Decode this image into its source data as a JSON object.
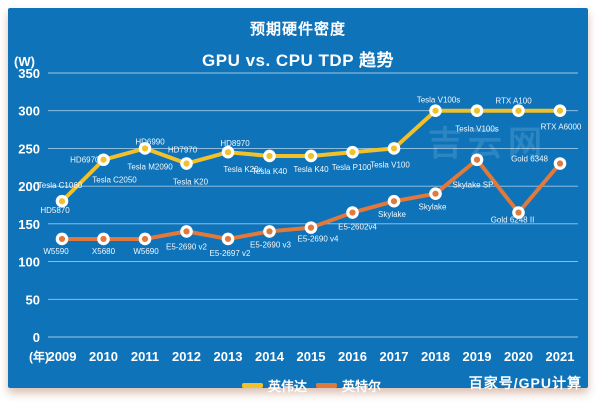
{
  "title": {
    "line1": "预期硬件密度",
    "line2": "GPU vs. CPU TDP 趋势"
  },
  "watermark": "吉云网",
  "credit": "百家号/GPU计算",
  "y_axis": {
    "unit": "(W)",
    "ticks": [
      350,
      300,
      250,
      200,
      150,
      100,
      50,
      0
    ]
  },
  "x_axis": {
    "prefix": "(年)",
    "years": [
      "2009",
      "2010",
      "2011",
      "2012",
      "2013",
      "2014",
      "2015",
      "2016",
      "2017",
      "2018",
      "2019",
      "2020",
      "2021"
    ]
  },
  "legend": [
    {
      "label": "英伟达",
      "color": "#f2c028"
    },
    {
      "label": "英特尔",
      "color": "#e0793c"
    }
  ],
  "colors": {
    "background": "#0e73b9",
    "gridline": "rgba(255,255,255,0.6)",
    "text": "#ffffff",
    "nvidia": "#f2c028",
    "intel": "#e0793c"
  },
  "chart_data": {
    "type": "line",
    "title": "预期硬件密度 — GPU vs. CPU TDP 趋势",
    "xlabel": "(年)",
    "ylabel": "(W)",
    "ylim": [
      0,
      350
    ],
    "grid": true,
    "legend_position": "bottom",
    "categories": [
      2009,
      2010,
      2011,
      2012,
      2013,
      2014,
      2015,
      2016,
      2017,
      2018,
      2019,
      2020,
      2021
    ],
    "series": [
      {
        "name": "英伟达",
        "color": "#f2c028",
        "values": [
          180,
          235,
          250,
          230,
          245,
          240,
          240,
          245,
          250,
          300,
          300,
          300,
          300
        ],
        "point_labels": [
          [
            {
              "text": "Tesla C1060",
              "dx": -2,
              "dy": -13
            },
            {
              "text": "HD5870",
              "dx": -7,
              "dy": 12
            }
          ],
          [
            {
              "text": "HD6970",
              "dx": -4,
              "dy": 3,
              "anchor": "end"
            },
            {
              "text": "Tesla C2050",
              "dx": 11,
              "dy": 23
            }
          ],
          [
            {
              "text": "HD6990",
              "dx": 5,
              "dy": -4
            },
            {
              "text": "Tesla M2090",
              "dx": 5,
              "dy": 21
            }
          ],
          [
            {
              "text": "HD7970",
              "dx": -4,
              "dy": -11
            },
            {
              "text": "Tesla K20",
              "dx": 4,
              "dy": 21
            }
          ],
          [
            {
              "text": "HD8970",
              "dx": 7,
              "dy": -6
            },
            {
              "text": "Tesla K20x",
              "dx": 15,
              "dy": 20
            }
          ],
          [
            {
              "text": "Tesla K40",
              "dx": 0,
              "dy": 18
            }
          ],
          [
            {
              "text": "Tesla K40",
              "dx": 0,
              "dy": 16
            }
          ],
          [
            {
              "text": "Tesla P100",
              "dx": -1,
              "dy": 18
            }
          ],
          [
            {
              "text": "Tesla V100",
              "dx": -4,
              "dy": 19
            }
          ],
          [
            {
              "text": "Tesla V100s",
              "dx": 3,
              "dy": -8
            }
          ],
          [
            {
              "text": "Tesla V100s",
              "dx": 0,
              "dy": 21
            }
          ],
          [
            {
              "text": "RTX A100",
              "dx": -5,
              "dy": -7
            }
          ],
          [
            {
              "text": "RTX A6000",
              "dx": 1,
              "dy": 19
            }
          ]
        ]
      },
      {
        "name": "英特尔",
        "color": "#e0793c",
        "values": [
          130,
          130,
          130,
          140,
          130,
          140,
          145,
          165,
          180,
          190,
          235,
          165,
          230
        ],
        "point_labels": [
          [
            {
              "text": "W5590",
              "dx": -6,
              "dy": 15
            }
          ],
          [
            {
              "text": "X5680",
              "dx": 0,
              "dy": 15
            }
          ],
          [
            {
              "text": "W5690",
              "dx": 1,
              "dy": 15
            }
          ],
          [
            {
              "text": "E5-2690 v2",
              "dx": 0,
              "dy": 18
            }
          ],
          [
            {
              "text": "E5-2697 v2",
              "dx": 2,
              "dy": 17
            }
          ],
          [
            {
              "text": "E5-2690 v3",
              "dx": 1,
              "dy": 16
            }
          ],
          [
            {
              "text": "E5-2690 v4",
              "dx": 7,
              "dy": 14
            }
          ],
          [
            {
              "text": "E5-2602v4",
              "dx": 5,
              "dy": 17
            }
          ],
          [
            {
              "text": "Skylake",
              "dx": -2,
              "dy": 16
            }
          ],
          [
            {
              "text": "Skylake",
              "dx": -3,
              "dy": 16
            }
          ],
          [
            {
              "text": "Skylake SP",
              "dx": -4,
              "dy": 28
            }
          ],
          [
            {
              "text": "Gold 6248 II",
              "dx": -6,
              "dy": 10
            }
          ],
          [
            {
              "text": "Gold 6348",
              "dx": -12,
              "dy": -2,
              "anchor": "end"
            }
          ]
        ]
      }
    ]
  }
}
